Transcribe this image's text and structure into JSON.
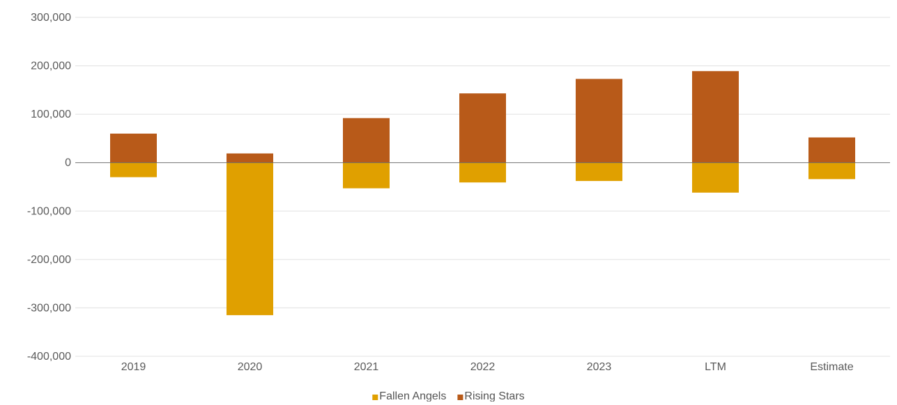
{
  "chart_data": {
    "type": "bar",
    "stacked": true,
    "categories": [
      "2019",
      "2020",
      "2021",
      "2022",
      "2023",
      "LTM",
      "Estimate"
    ],
    "series": [
      {
        "name": "Fallen Angels",
        "color": "#E0A000",
        "values": [
          -30000,
          -315000,
          -53000,
          -41000,
          -38000,
          -62000,
          -34000
        ]
      },
      {
        "name": "Rising Stars",
        "color": "#B85A19",
        "values": [
          60000,
          19000,
          92000,
          143000,
          173000,
          189000,
          52000
        ]
      }
    ],
    "y_ticks": [
      "300,000",
      "200,000",
      "100,000",
      "0",
      "-100,000",
      "-200,000",
      "-300,000",
      "-400,000"
    ],
    "y_tick_values": [
      300000,
      200000,
      100000,
      0,
      -100000,
      -200000,
      -300000,
      -400000
    ],
    "ylim": [
      -400000,
      300000
    ],
    "grid": true,
    "legend_position": "bottom-center"
  }
}
